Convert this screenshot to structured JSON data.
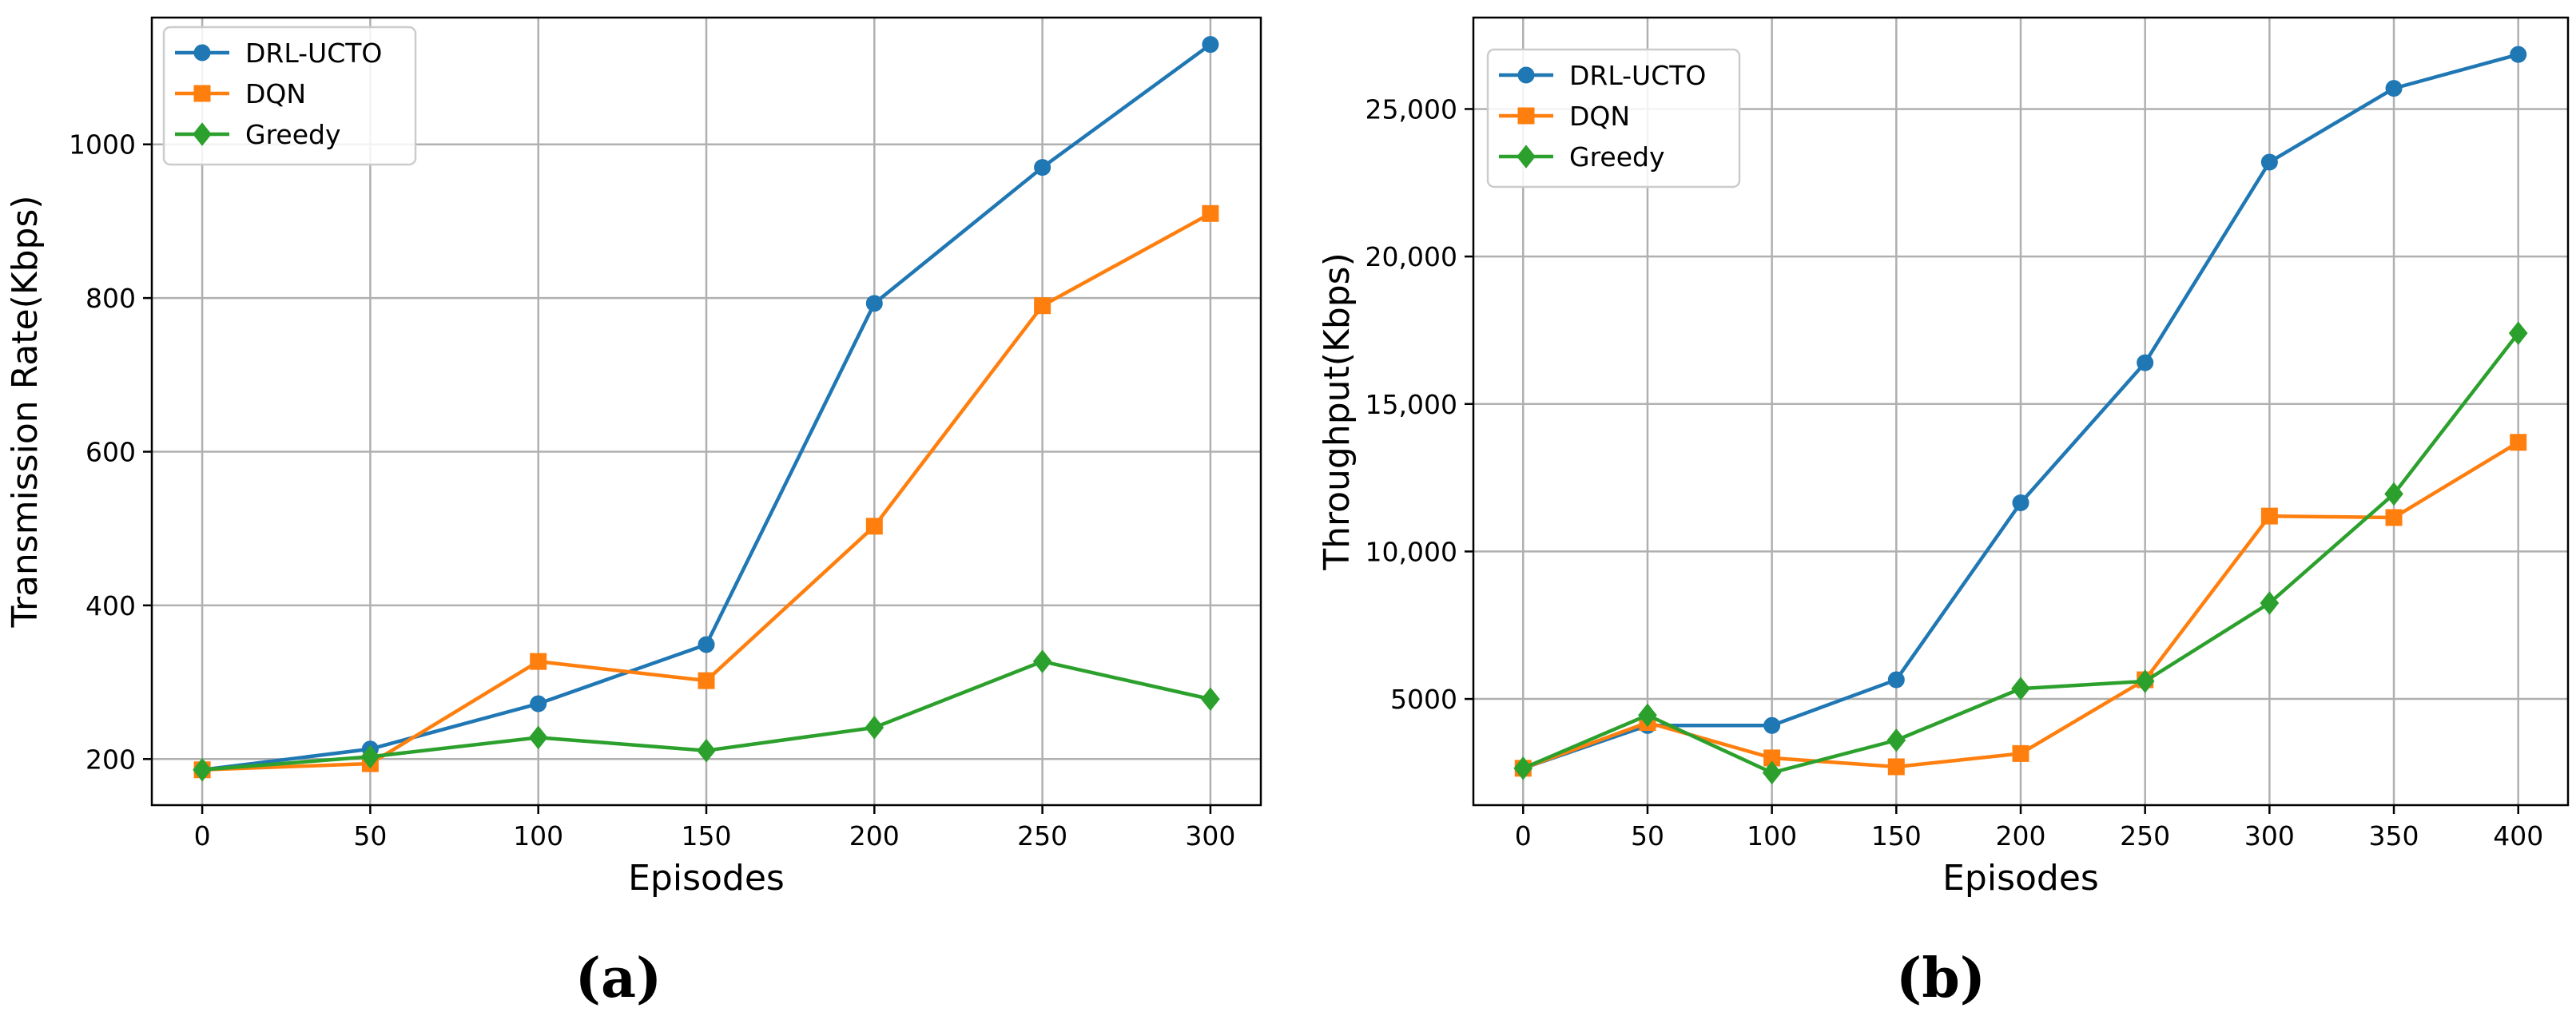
{
  "colors": {
    "DRL-UCTO": "#1f77b4",
    "DQN": "#ff7f0e",
    "Greedy": "#2ca02c",
    "grid": "#b0b0b0"
  },
  "chart_data": [
    {
      "type": "line",
      "panel_label": "(a)",
      "xlabel": "Episodes",
      "ylabel": "Transmission Rate(Kbps)",
      "x": [
        0,
        50,
        100,
        150,
        200,
        250,
        300
      ],
      "xlim": [
        -15,
        315
      ],
      "ylim": [
        140,
        1165
      ],
      "xticks": [
        0,
        50,
        100,
        150,
        200,
        250,
        300
      ],
      "yticks": [
        200,
        400,
        600,
        800,
        1000
      ],
      "ytick_labels": [
        "200",
        "400",
        "600",
        "800",
        "1000"
      ],
      "grid": true,
      "legend": "top-left",
      "series": [
        {
          "name": "DRL-UCTO",
          "marker": "circle",
          "values": [
            186,
            213,
            272,
            349,
            793,
            970,
            1130
          ]
        },
        {
          "name": "DQN",
          "marker": "square",
          "values": [
            186,
            194,
            327,
            302,
            503,
            790,
            910
          ]
        },
        {
          "name": "Greedy",
          "marker": "diamond",
          "values": [
            186,
            203,
            228,
            211,
            241,
            327,
            278
          ]
        }
      ]
    },
    {
      "type": "line",
      "panel_label": "(b)",
      "xlabel": "Episodes",
      "ylabel": "Throughput(Kbps)",
      "x": [
        0,
        50,
        100,
        150,
        200,
        250,
        300,
        350,
        400
      ],
      "xlim": [
        -20,
        420
      ],
      "ylim": [
        1400,
        28100
      ],
      "xticks": [
        0,
        50,
        100,
        150,
        200,
        250,
        300,
        350,
        400
      ],
      "yticks": [
        5000,
        10000,
        15000,
        20000,
        25000
      ],
      "ytick_labels": [
        "5000",
        "10,000",
        "15,000",
        "20,000",
        "25,000"
      ],
      "grid": true,
      "legend": "top-left",
      "series": [
        {
          "name": "DRL-UCTO",
          "marker": "circle",
          "values": [
            2650,
            4100,
            4100,
            5650,
            11650,
            16400,
            23200,
            25700,
            26850
          ]
        },
        {
          "name": "DQN",
          "marker": "square",
          "values": [
            2650,
            4200,
            3000,
            2700,
            3150,
            5650,
            11200,
            11150,
            13700
          ]
        },
        {
          "name": "Greedy",
          "marker": "diamond",
          "values": [
            2650,
            4450,
            2500,
            3600,
            5350,
            5600,
            8250,
            11950,
            17400
          ]
        }
      ]
    }
  ]
}
